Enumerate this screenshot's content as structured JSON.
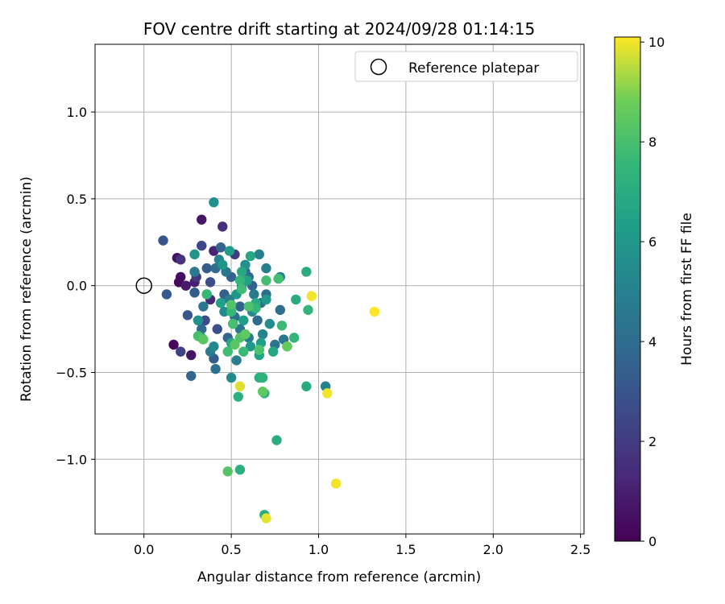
{
  "chart_data": {
    "type": "scatter",
    "title": "FOV centre drift starting at 2024/09/28 01:14:15",
    "xlabel": "Angular distance from reference (arcmin)",
    "ylabel": "Rotation from reference (arcmin)",
    "xlim": [
      -0.28,
      2.52
    ],
    "ylim": [
      -1.43,
      1.39
    ],
    "xticks": [
      {
        "value": 0.0,
        "label": "0.0"
      },
      {
        "value": 0.5,
        "label": "0.5"
      },
      {
        "value": 1.0,
        "label": "1.0"
      },
      {
        "value": 1.5,
        "label": "1.5"
      },
      {
        "value": 2.0,
        "label": "2.0"
      },
      {
        "value": 2.5,
        "label": "2.5"
      }
    ],
    "yticks": [
      {
        "value": 1.0,
        "label": "1.0"
      },
      {
        "value": 0.5,
        "label": "0.5"
      },
      {
        "value": 0.0,
        "label": "0.0"
      },
      {
        "value": -0.5,
        "label": "−0.5"
      },
      {
        "value": -1.0,
        "label": "−1.0"
      }
    ],
    "grid": true,
    "legend": {
      "position": "top-right",
      "entries": [
        "Reference platepar"
      ]
    },
    "reference": {
      "x": 0.0,
      "y": 0.0
    },
    "colorbar": {
      "label": "Hours from first FF file",
      "range": [
        0,
        10.1
      ],
      "colormap": "viridis",
      "ticks": [
        {
          "value": 0,
          "label": "0"
        },
        {
          "value": 2,
          "label": "2"
        },
        {
          "value": 4,
          "label": "4"
        },
        {
          "value": 6,
          "label": "6"
        },
        {
          "value": 8,
          "label": "8"
        },
        {
          "value": 10,
          "label": "10"
        }
      ]
    },
    "points": [
      {
        "x": 0.17,
        "y": -0.34,
        "t": 0.2
      },
      {
        "x": 0.2,
        "y": 0.02,
        "t": 0.3
      },
      {
        "x": 0.21,
        "y": 0.05,
        "t": 0.4
      },
      {
        "x": 0.19,
        "y": 0.16,
        "t": 0.5
      },
      {
        "x": 0.27,
        "y": -0.4,
        "t": 0.6
      },
      {
        "x": 0.33,
        "y": 0.38,
        "t": 0.7
      },
      {
        "x": 0.24,
        "y": 0.0,
        "t": 0.8
      },
      {
        "x": 0.29,
        "y": 0.02,
        "t": 1.0
      },
      {
        "x": 0.4,
        "y": 0.2,
        "t": 1.1
      },
      {
        "x": 0.38,
        "y": -0.08,
        "t": 1.3
      },
      {
        "x": 0.45,
        "y": 0.34,
        "t": 1.5
      },
      {
        "x": 0.21,
        "y": 0.15,
        "t": 1.7
      },
      {
        "x": 0.3,
        "y": 0.05,
        "t": 1.8
      },
      {
        "x": 0.52,
        "y": 0.18,
        "t": 2.0
      },
      {
        "x": 0.21,
        "y": -0.38,
        "t": 2.2
      },
      {
        "x": 0.33,
        "y": 0.23,
        "t": 2.5
      },
      {
        "x": 0.35,
        "y": -0.2,
        "t": 2.6
      },
      {
        "x": 0.38,
        "y": 0.02,
        "t": 2.7
      },
      {
        "x": 0.42,
        "y": -0.25,
        "t": 2.8
      },
      {
        "x": 0.25,
        "y": -0.17,
        "t": 3.0
      },
      {
        "x": 0.11,
        "y": 0.26,
        "t": 3.0
      },
      {
        "x": 0.13,
        "y": -0.05,
        "t": 3.2
      },
      {
        "x": 0.29,
        "y": -0.04,
        "t": 3.2
      },
      {
        "x": 0.36,
        "y": 0.1,
        "t": 3.3
      },
      {
        "x": 0.4,
        "y": -0.42,
        "t": 3.4
      },
      {
        "x": 0.46,
        "y": -0.05,
        "t": 3.5
      },
      {
        "x": 0.5,
        "y": 0.05,
        "t": 3.5
      },
      {
        "x": 0.55,
        "y": -0.12,
        "t": 3.6
      },
      {
        "x": 0.62,
        "y": 0.0,
        "t": 3.6
      },
      {
        "x": 0.27,
        "y": -0.52,
        "t": 3.7
      },
      {
        "x": 0.44,
        "y": 0.22,
        "t": 3.7
      },
      {
        "x": 0.48,
        "y": -0.3,
        "t": 3.8
      },
      {
        "x": 0.58,
        "y": 0.08,
        "t": 3.8
      },
      {
        "x": 0.65,
        "y": -0.2,
        "t": 3.9
      },
      {
        "x": 0.33,
        "y": -0.25,
        "t": 3.9
      },
      {
        "x": 0.41,
        "y": 0.1,
        "t": 4.0
      },
      {
        "x": 0.6,
        "y": 0.05,
        "t": 4.0
      },
      {
        "x": 0.7,
        "y": -0.05,
        "t": 4.1
      },
      {
        "x": 0.78,
        "y": -0.14,
        "t": 4.1
      },
      {
        "x": 0.41,
        "y": -0.48,
        "t": 4.2
      },
      {
        "x": 0.52,
        "y": -0.18,
        "t": 4.2
      },
      {
        "x": 0.67,
        "y": -0.1,
        "t": 4.3
      },
      {
        "x": 0.75,
        "y": -0.34,
        "t": 4.3
      },
      {
        "x": 0.8,
        "y": -0.31,
        "t": 4.4
      },
      {
        "x": 0.34,
        "y": -0.12,
        "t": 4.4
      },
      {
        "x": 0.47,
        "y": 0.08,
        "t": 4.5
      },
      {
        "x": 0.55,
        "y": -0.25,
        "t": 4.5
      },
      {
        "x": 0.63,
        "y": -0.05,
        "t": 4.6
      },
      {
        "x": 0.29,
        "y": 0.08,
        "t": 4.6
      },
      {
        "x": 0.38,
        "y": -0.38,
        "t": 4.7
      },
      {
        "x": 0.53,
        "y": -0.43,
        "t": 4.8
      },
      {
        "x": 0.6,
        "y": -0.3,
        "t": 4.8
      },
      {
        "x": 0.7,
        "y": 0.1,
        "t": 4.9
      },
      {
        "x": 0.49,
        "y": -0.08,
        "t": 4.9
      },
      {
        "x": 1.04,
        "y": -0.58,
        "t": 5.0
      },
      {
        "x": 0.66,
        "y": 0.18,
        "t": 5.0
      },
      {
        "x": 0.78,
        "y": 0.05,
        "t": 5.1
      },
      {
        "x": 0.43,
        "y": 0.15,
        "t": 5.1
      },
      {
        "x": 0.56,
        "y": 0.0,
        "t": 5.2
      },
      {
        "x": 0.68,
        "y": -0.28,
        "t": 5.2
      },
      {
        "x": 0.4,
        "y": -0.35,
        "t": 5.3
      },
      {
        "x": 0.5,
        "y": -0.53,
        "t": 5.4
      },
      {
        "x": 0.62,
        "y": -0.15,
        "t": 5.4
      },
      {
        "x": 0.72,
        "y": -0.22,
        "t": 5.5
      },
      {
        "x": 0.46,
        "y": -0.15,
        "t": 5.5
      },
      {
        "x": 0.58,
        "y": 0.12,
        "t": 5.6
      },
      {
        "x": 0.4,
        "y": 0.48,
        "t": 5.7
      },
      {
        "x": 0.31,
        "y": -0.2,
        "t": 5.8
      },
      {
        "x": 0.29,
        "y": 0.18,
        "t": 5.9
      },
      {
        "x": 0.45,
        "y": 0.12,
        "t": 6.0
      },
      {
        "x": 0.53,
        "y": -0.05,
        "t": 6.0
      },
      {
        "x": 0.61,
        "y": -0.35,
        "t": 6.1
      },
      {
        "x": 0.7,
        "y": -0.08,
        "t": 6.1
      },
      {
        "x": 0.36,
        "y": -0.05,
        "t": 6.2
      },
      {
        "x": 0.49,
        "y": 0.2,
        "t": 6.2
      },
      {
        "x": 0.57,
        "y": -0.2,
        "t": 6.3
      },
      {
        "x": 0.67,
        "y": -0.33,
        "t": 6.3
      },
      {
        "x": 0.82,
        "y": -0.35,
        "t": 6.4
      },
      {
        "x": 0.44,
        "y": -0.1,
        "t": 6.4
      },
      {
        "x": 0.59,
        "y": 0.03,
        "t": 6.5
      },
      {
        "x": 0.66,
        "y": -0.4,
        "t": 6.5
      },
      {
        "x": 0.33,
        "y": -0.3,
        "t": 6.6
      },
      {
        "x": 0.51,
        "y": -0.22,
        "t": 6.6
      },
      {
        "x": 0.61,
        "y": 0.17,
        "t": 6.7
      },
      {
        "x": 0.74,
        "y": -0.38,
        "t": 6.7
      },
      {
        "x": 0.5,
        "y": -0.33,
        "t": 6.8
      },
      {
        "x": 0.56,
        "y": 0.08,
        "t": 6.8
      },
      {
        "x": 0.64,
        "y": -0.1,
        "t": 6.9
      },
      {
        "x": 0.93,
        "y": -0.58,
        "t": 6.9
      },
      {
        "x": 0.93,
        "y": 0.08,
        "t": 7.0
      },
      {
        "x": 0.87,
        "y": -0.08,
        "t": 7.0
      },
      {
        "x": 0.76,
        "y": -0.89,
        "t": 7.0
      },
      {
        "x": 0.55,
        "y": -1.06,
        "t": 7.1
      },
      {
        "x": 0.69,
        "y": -1.32,
        "t": 7.1
      },
      {
        "x": 0.54,
        "y": -0.64,
        "t": 7.2
      },
      {
        "x": 0.66,
        "y": -0.53,
        "t": 7.2
      },
      {
        "x": 0.68,
        "y": -0.53,
        "t": 7.3
      },
      {
        "x": 0.69,
        "y": -0.62,
        "t": 7.3
      },
      {
        "x": 0.86,
        "y": -0.3,
        "t": 7.4
      },
      {
        "x": 0.94,
        "y": -0.14,
        "t": 7.4
      },
      {
        "x": 0.55,
        "y": 0.03,
        "t": 7.5
      },
      {
        "x": 0.64,
        "y": -0.13,
        "t": 7.5
      },
      {
        "x": 0.36,
        "y": -0.05,
        "t": 7.6
      },
      {
        "x": 0.5,
        "y": -0.15,
        "t": 7.6
      },
      {
        "x": 0.57,
        "y": -0.38,
        "t": 7.7
      },
      {
        "x": 0.79,
        "y": -0.23,
        "t": 7.7
      },
      {
        "x": 0.48,
        "y": -0.38,
        "t": 7.8
      },
      {
        "x": 0.56,
        "y": -0.02,
        "t": 7.8
      },
      {
        "x": 0.7,
        "y": 0.03,
        "t": 7.9
      },
      {
        "x": 0.77,
        "y": 0.04,
        "t": 7.9
      },
      {
        "x": 0.31,
        "y": -0.29,
        "t": 8.0
      },
      {
        "x": 0.51,
        "y": -0.22,
        "t": 8.0
      },
      {
        "x": 0.66,
        "y": -0.37,
        "t": 8.1
      },
      {
        "x": 0.6,
        "y": -0.12,
        "t": 8.1
      },
      {
        "x": 0.5,
        "y": -0.11,
        "t": 8.2
      },
      {
        "x": 0.55,
        "y": -0.3,
        "t": 8.2
      },
      {
        "x": 0.48,
        "y": -1.07,
        "t": 8.3
      },
      {
        "x": 0.34,
        "y": -0.31,
        "t": 8.4
      },
      {
        "x": 0.52,
        "y": -0.34,
        "t": 8.4
      },
      {
        "x": 0.68,
        "y": -0.61,
        "t": 8.5
      },
      {
        "x": 0.58,
        "y": -0.28,
        "t": 8.5
      },
      {
        "x": 0.82,
        "y": -0.35,
        "t": 8.6
      },
      {
        "x": 0.55,
        "y": -0.58,
        "t": 9.8
      },
      {
        "x": 0.7,
        "y": -1.34,
        "t": 9.9
      },
      {
        "x": 1.05,
        "y": -0.62,
        "t": 10.0
      },
      {
        "x": 1.1,
        "y": -1.14,
        "t": 10.0
      },
      {
        "x": 0.96,
        "y": -0.06,
        "t": 10.0
      },
      {
        "x": 1.32,
        "y": -0.15,
        "t": 10.1
      }
    ]
  }
}
